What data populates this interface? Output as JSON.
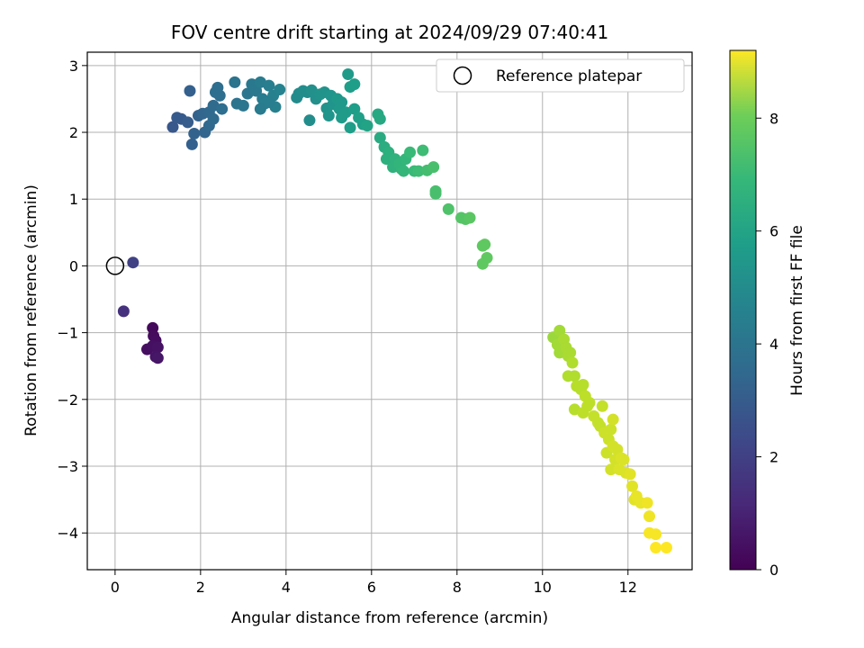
{
  "chart_data": {
    "type": "scatter",
    "title": "FOV centre drift starting at 2024/09/29 07:40:41",
    "xlabel": "Angular distance from reference (arcmin)",
    "ylabel": "Rotation from reference (arcmin)",
    "xlim": [
      -0.65,
      13.5
    ],
    "ylim": [
      -4.55,
      3.2
    ],
    "xticks": [
      0,
      2,
      4,
      6,
      8,
      10,
      12
    ],
    "yticks": [
      -4,
      -3,
      -2,
      -1,
      0,
      1,
      2,
      3
    ],
    "grid": true,
    "colormap": "viridis",
    "colorbar": {
      "label": "Hours from first FF file",
      "min": 0,
      "max": 9.2,
      "ticks": [
        0,
        2,
        4,
        6,
        8
      ]
    },
    "legend": {
      "position": "top-right",
      "entries": [
        "Reference platepar"
      ]
    },
    "reference_point": {
      "x": 0,
      "y": 0
    },
    "points": [
      {
        "x": 0.88,
        "y": -0.93,
        "t": 0.2
      },
      {
        "x": 0.9,
        "y": -1.05,
        "t": 0.25
      },
      {
        "x": 0.95,
        "y": -1.12,
        "t": 0.3
      },
      {
        "x": 0.75,
        "y": -1.25,
        "t": 0.35
      },
      {
        "x": 0.88,
        "y": -1.2,
        "t": 0.4
      },
      {
        "x": 1.0,
        "y": -1.22,
        "t": 0.45
      },
      {
        "x": 0.95,
        "y": -1.36,
        "t": 0.5
      },
      {
        "x": 1.0,
        "y": -1.38,
        "t": 0.55
      },
      {
        "x": 0.2,
        "y": -0.68,
        "t": 1.3
      },
      {
        "x": 0.42,
        "y": 0.05,
        "t": 1.8
      },
      {
        "x": 1.35,
        "y": 2.08,
        "t": 2.5
      },
      {
        "x": 1.45,
        "y": 2.22,
        "t": 2.6
      },
      {
        "x": 1.55,
        "y": 2.2,
        "t": 2.6
      },
      {
        "x": 1.75,
        "y": 2.62,
        "t": 2.8
      },
      {
        "x": 1.8,
        "y": 1.82,
        "t": 2.8
      },
      {
        "x": 1.85,
        "y": 1.98,
        "t": 2.9
      },
      {
        "x": 1.7,
        "y": 2.15,
        "t": 2.7
      },
      {
        "x": 1.95,
        "y": 2.25,
        "t": 2.9
      },
      {
        "x": 2.05,
        "y": 2.28,
        "t": 3.0
      },
      {
        "x": 2.1,
        "y": 2.0,
        "t": 3.0
      },
      {
        "x": 2.2,
        "y": 2.1,
        "t": 3.1
      },
      {
        "x": 2.2,
        "y": 2.3,
        "t": 3.1
      },
      {
        "x": 2.3,
        "y": 2.4,
        "t": 3.2
      },
      {
        "x": 2.35,
        "y": 2.6,
        "t": 3.3
      },
      {
        "x": 2.4,
        "y": 2.67,
        "t": 3.3
      },
      {
        "x": 2.45,
        "y": 2.55,
        "t": 3.3
      },
      {
        "x": 2.5,
        "y": 2.35,
        "t": 3.3
      },
      {
        "x": 2.3,
        "y": 2.2,
        "t": 3.2
      },
      {
        "x": 2.8,
        "y": 2.75,
        "t": 3.5
      },
      {
        "x": 2.85,
        "y": 2.43,
        "t": 3.5
      },
      {
        "x": 3.0,
        "y": 2.4,
        "t": 3.6
      },
      {
        "x": 3.1,
        "y": 2.58,
        "t": 3.6
      },
      {
        "x": 3.2,
        "y": 2.72,
        "t": 3.7
      },
      {
        "x": 3.3,
        "y": 2.62,
        "t": 3.7
      },
      {
        "x": 3.4,
        "y": 2.75,
        "t": 3.8
      },
      {
        "x": 3.45,
        "y": 2.5,
        "t": 3.8
      },
      {
        "x": 3.5,
        "y": 2.43,
        "t": 3.9
      },
      {
        "x": 3.4,
        "y": 2.35,
        "t": 3.8
      },
      {
        "x": 3.6,
        "y": 2.7,
        "t": 3.9
      },
      {
        "x": 3.7,
        "y": 2.55,
        "t": 4.0
      },
      {
        "x": 3.75,
        "y": 2.38,
        "t": 4.0
      },
      {
        "x": 3.85,
        "y": 2.64,
        "t": 4.1
      },
      {
        "x": 3.6,
        "y": 2.45,
        "t": 3.9
      },
      {
        "x": 4.25,
        "y": 2.52,
        "t": 4.4
      },
      {
        "x": 4.3,
        "y": 2.58,
        "t": 4.4
      },
      {
        "x": 4.4,
        "y": 2.62,
        "t": 4.5
      },
      {
        "x": 4.5,
        "y": 2.6,
        "t": 4.5
      },
      {
        "x": 4.55,
        "y": 2.18,
        "t": 4.5
      },
      {
        "x": 4.6,
        "y": 2.63,
        "t": 4.6
      },
      {
        "x": 4.7,
        "y": 2.5,
        "t": 4.6
      },
      {
        "x": 4.8,
        "y": 2.57,
        "t": 4.7
      },
      {
        "x": 4.9,
        "y": 2.6,
        "t": 4.7
      },
      {
        "x": 4.95,
        "y": 2.36,
        "t": 4.7
      },
      {
        "x": 5.0,
        "y": 2.25,
        "t": 4.8
      },
      {
        "x": 5.05,
        "y": 2.55,
        "t": 4.8
      },
      {
        "x": 5.1,
        "y": 2.42,
        "t": 4.8
      },
      {
        "x": 5.2,
        "y": 2.5,
        "t": 4.9
      },
      {
        "x": 5.25,
        "y": 2.35,
        "t": 4.9
      },
      {
        "x": 5.3,
        "y": 2.45,
        "t": 4.9
      },
      {
        "x": 5.3,
        "y": 2.22,
        "t": 5.0
      },
      {
        "x": 5.4,
        "y": 2.3,
        "t": 5.0
      },
      {
        "x": 5.45,
        "y": 2.87,
        "t": 5.0
      },
      {
        "x": 5.5,
        "y": 2.68,
        "t": 5.1
      },
      {
        "x": 5.5,
        "y": 2.07,
        "t": 5.1
      },
      {
        "x": 5.6,
        "y": 2.72,
        "t": 5.1
      },
      {
        "x": 5.6,
        "y": 2.35,
        "t": 5.1
      },
      {
        "x": 5.7,
        "y": 2.22,
        "t": 5.2
      },
      {
        "x": 5.8,
        "y": 2.12,
        "t": 5.2
      },
      {
        "x": 5.9,
        "y": 2.1,
        "t": 5.3
      },
      {
        "x": 6.15,
        "y": 2.27,
        "t": 5.5
      },
      {
        "x": 6.2,
        "y": 2.2,
        "t": 5.5
      },
      {
        "x": 6.2,
        "y": 1.92,
        "t": 5.6
      },
      {
        "x": 6.3,
        "y": 1.78,
        "t": 5.7
      },
      {
        "x": 6.35,
        "y": 1.6,
        "t": 5.8
      },
      {
        "x": 6.4,
        "y": 1.7,
        "t": 5.8
      },
      {
        "x": 6.5,
        "y": 1.48,
        "t": 5.9
      },
      {
        "x": 6.55,
        "y": 1.6,
        "t": 5.9
      },
      {
        "x": 6.65,
        "y": 1.53,
        "t": 6.0
      },
      {
        "x": 6.7,
        "y": 1.45,
        "t": 6.0
      },
      {
        "x": 6.75,
        "y": 1.42,
        "t": 6.1
      },
      {
        "x": 6.8,
        "y": 1.6,
        "t": 6.1
      },
      {
        "x": 6.9,
        "y": 1.7,
        "t": 6.2
      },
      {
        "x": 7.0,
        "y": 1.42,
        "t": 6.2
      },
      {
        "x": 7.1,
        "y": 1.42,
        "t": 6.3
      },
      {
        "x": 7.2,
        "y": 1.73,
        "t": 6.3
      },
      {
        "x": 7.3,
        "y": 1.43,
        "t": 6.4
      },
      {
        "x": 7.45,
        "y": 1.48,
        "t": 6.5
      },
      {
        "x": 7.5,
        "y": 1.08,
        "t": 6.5
      },
      {
        "x": 7.5,
        "y": 1.12,
        "t": 6.5
      },
      {
        "x": 7.8,
        "y": 0.85,
        "t": 6.6
      },
      {
        "x": 8.1,
        "y": 0.72,
        "t": 6.7
      },
      {
        "x": 8.2,
        "y": 0.7,
        "t": 6.7
      },
      {
        "x": 8.3,
        "y": 0.72,
        "t": 6.8
      },
      {
        "x": 8.6,
        "y": 0.3,
        "t": 6.9
      },
      {
        "x": 8.65,
        "y": 0.32,
        "t": 6.9
      },
      {
        "x": 8.7,
        "y": 0.12,
        "t": 6.9
      },
      {
        "x": 8.6,
        "y": 0.03,
        "t": 6.9
      },
      {
        "x": 10.25,
        "y": -1.07,
        "t": 7.8
      },
      {
        "x": 10.35,
        "y": -1.18,
        "t": 7.9
      },
      {
        "x": 10.4,
        "y": -0.97,
        "t": 7.9
      },
      {
        "x": 10.4,
        "y": -1.3,
        "t": 7.9
      },
      {
        "x": 10.5,
        "y": -1.1,
        "t": 8.0
      },
      {
        "x": 10.55,
        "y": -1.22,
        "t": 8.0
      },
      {
        "x": 10.6,
        "y": -1.35,
        "t": 8.0
      },
      {
        "x": 10.65,
        "y": -1.3,
        "t": 8.0
      },
      {
        "x": 10.7,
        "y": -1.45,
        "t": 8.1
      },
      {
        "x": 10.6,
        "y": -1.65,
        "t": 8.1
      },
      {
        "x": 10.75,
        "y": -1.65,
        "t": 8.1
      },
      {
        "x": 10.8,
        "y": -1.8,
        "t": 8.2
      },
      {
        "x": 10.75,
        "y": -2.15,
        "t": 8.2
      },
      {
        "x": 10.9,
        "y": -1.85,
        "t": 8.2
      },
      {
        "x": 10.95,
        "y": -1.78,
        "t": 8.2
      },
      {
        "x": 11.0,
        "y": -1.95,
        "t": 8.3
      },
      {
        "x": 11.05,
        "y": -2.1,
        "t": 8.3
      },
      {
        "x": 11.1,
        "y": -2.05,
        "t": 8.3
      },
      {
        "x": 10.95,
        "y": -2.2,
        "t": 8.3
      },
      {
        "x": 11.2,
        "y": -2.25,
        "t": 8.4
      },
      {
        "x": 11.3,
        "y": -2.35,
        "t": 8.4
      },
      {
        "x": 11.35,
        "y": -2.4,
        "t": 8.4
      },
      {
        "x": 11.4,
        "y": -2.1,
        "t": 8.4
      },
      {
        "x": 11.45,
        "y": -2.5,
        "t": 8.5
      },
      {
        "x": 11.5,
        "y": -2.8,
        "t": 8.5
      },
      {
        "x": 11.55,
        "y": -2.6,
        "t": 8.5
      },
      {
        "x": 11.6,
        "y": -2.45,
        "t": 8.5
      },
      {
        "x": 11.6,
        "y": -3.05,
        "t": 8.6
      },
      {
        "x": 11.65,
        "y": -2.7,
        "t": 8.6
      },
      {
        "x": 11.65,
        "y": -2.3,
        "t": 8.6
      },
      {
        "x": 11.7,
        "y": -2.9,
        "t": 8.6
      },
      {
        "x": 11.75,
        "y": -2.75,
        "t": 8.6
      },
      {
        "x": 11.8,
        "y": -3.05,
        "t": 8.7
      },
      {
        "x": 11.85,
        "y": -2.88,
        "t": 8.7
      },
      {
        "x": 11.9,
        "y": -2.9,
        "t": 8.7
      },
      {
        "x": 11.95,
        "y": -3.1,
        "t": 8.7
      },
      {
        "x": 12.05,
        "y": -3.12,
        "t": 8.8
      },
      {
        "x": 12.1,
        "y": -3.3,
        "t": 8.8
      },
      {
        "x": 12.15,
        "y": -3.5,
        "t": 8.8
      },
      {
        "x": 12.2,
        "y": -3.45,
        "t": 8.9
      },
      {
        "x": 12.3,
        "y": -3.55,
        "t": 8.9
      },
      {
        "x": 12.45,
        "y": -3.55,
        "t": 9.0
      },
      {
        "x": 12.5,
        "y": -3.75,
        "t": 9.0
      },
      {
        "x": 12.5,
        "y": -4.0,
        "t": 9.1
      },
      {
        "x": 12.65,
        "y": -4.02,
        "t": 9.1
      },
      {
        "x": 12.65,
        "y": -4.22,
        "t": 9.2
      },
      {
        "x": 12.9,
        "y": -4.22,
        "t": 9.2
      }
    ]
  }
}
